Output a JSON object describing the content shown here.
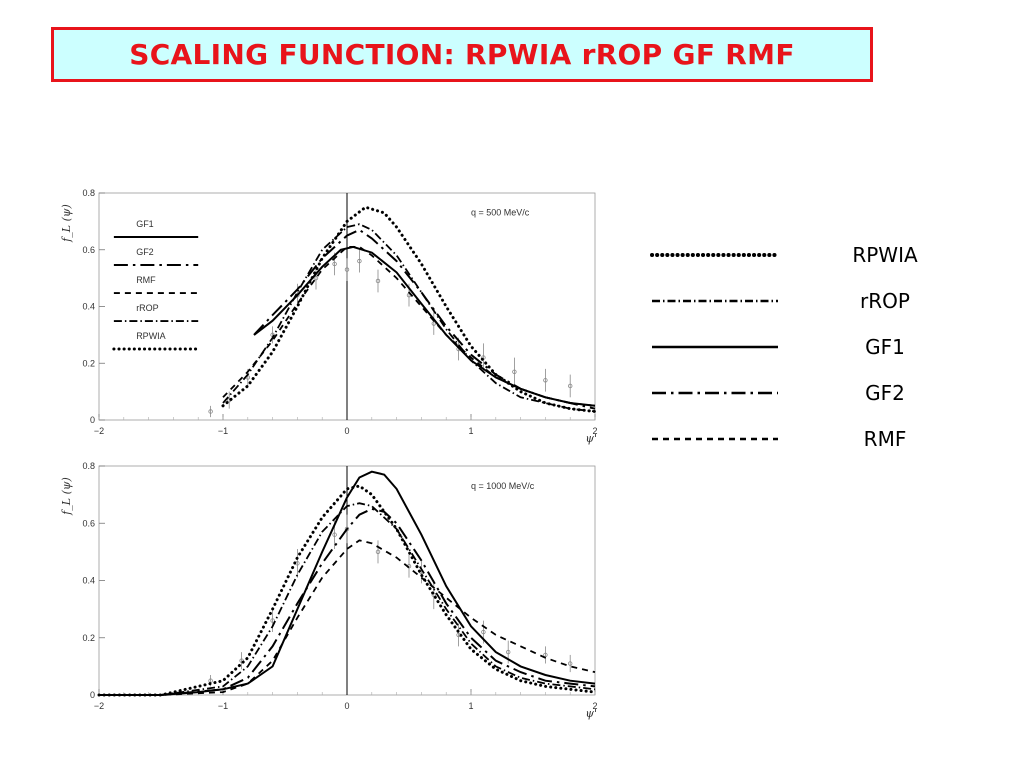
{
  "title": "SCALING FUNCTION: RPWIA rROP GF RMF",
  "colors": {
    "title_text": "#e8141b",
    "title_border": "#e8141b",
    "title_bg": "#ccffff",
    "lines": "#000000",
    "data_points": "#888888"
  },
  "legend_side": [
    {
      "label": "RPWIA",
      "style": "dotted"
    },
    {
      "label": "rROP",
      "style": "dashdot"
    },
    {
      "label": "GF1",
      "style": "solid"
    },
    {
      "label": "GF2",
      "style": "longdashdot"
    },
    {
      "label": "RMF",
      "style": "dashed"
    }
  ],
  "chart_data": [
    {
      "type": "line",
      "annotation": "q = 500 MeV/c",
      "ylabel": "f_L (ψ)",
      "xlabel": "ψ'",
      "xlim": [
        -2,
        2
      ],
      "ylim": [
        0,
        0.8
      ],
      "xticks": [
        "−2",
        "−1",
        "0",
        "1",
        "2"
      ],
      "yticks": [
        "0",
        "0.2",
        "0.4",
        "0.6",
        "0.8"
      ],
      "vertical_line_x": 0,
      "legend": [
        {
          "name": "GF1",
          "style": "solid"
        },
        {
          "name": "GF2",
          "style": "longdashdot"
        },
        {
          "name": "RMF",
          "style": "dashed"
        },
        {
          "name": "rROP",
          "style": "dashdot"
        },
        {
          "name": "RPWIA",
          "style": "dotted"
        }
      ],
      "series": [
        {
          "name": "GF1",
          "style": "solid",
          "x": [
            -0.75,
            -0.6,
            -0.4,
            -0.2,
            -0.05,
            0.05,
            0.2,
            0.4,
            0.6,
            0.8,
            1.0,
            1.2,
            1.4,
            1.6,
            1.8,
            2.0
          ],
          "y": [
            0.3,
            0.35,
            0.44,
            0.54,
            0.6,
            0.61,
            0.59,
            0.52,
            0.41,
            0.3,
            0.21,
            0.15,
            0.11,
            0.08,
            0.06,
            0.05
          ]
        },
        {
          "name": "GF2",
          "style": "longdashdot",
          "x": [
            -0.75,
            -0.6,
            -0.4,
            -0.2,
            0.0,
            0.1,
            0.2,
            0.4,
            0.6,
            0.8,
            1.0,
            1.2,
            1.4,
            1.6,
            1.8,
            2.0
          ],
          "y": [
            0.3,
            0.37,
            0.46,
            0.57,
            0.65,
            0.67,
            0.64,
            0.56,
            0.45,
            0.33,
            0.23,
            0.16,
            0.11,
            0.08,
            0.06,
            0.04
          ]
        },
        {
          "name": "RMF",
          "style": "dashed",
          "x": [
            -1.0,
            -0.8,
            -0.6,
            -0.4,
            -0.2,
            0.0,
            0.1,
            0.2,
            0.4,
            0.6,
            0.8,
            1.0,
            1.2,
            1.4,
            1.6,
            1.8,
            2.0
          ],
          "y": [
            0.08,
            0.17,
            0.28,
            0.41,
            0.53,
            0.61,
            0.61,
            0.58,
            0.5,
            0.4,
            0.3,
            0.22,
            0.15,
            0.11,
            0.08,
            0.06,
            0.05
          ]
        },
        {
          "name": "rROP",
          "style": "dashdot",
          "x": [
            -1.0,
            -0.8,
            -0.6,
            -0.4,
            -0.2,
            0.0,
            0.1,
            0.2,
            0.4,
            0.6,
            0.8,
            1.0,
            1.2,
            1.4,
            1.6,
            1.8,
            2.0
          ],
          "y": [
            0.06,
            0.16,
            0.29,
            0.45,
            0.6,
            0.68,
            0.69,
            0.67,
            0.58,
            0.45,
            0.32,
            0.21,
            0.13,
            0.08,
            0.06,
            0.04,
            0.03
          ]
        },
        {
          "name": "RPWIA",
          "style": "dotted",
          "x": [
            -1.0,
            -0.8,
            -0.6,
            -0.4,
            -0.2,
            0.0,
            0.15,
            0.3,
            0.4,
            0.6,
            0.8,
            1.0,
            1.2,
            1.4,
            1.6,
            1.8,
            2.0
          ],
          "y": [
            0.05,
            0.12,
            0.24,
            0.4,
            0.57,
            0.7,
            0.75,
            0.73,
            0.68,
            0.55,
            0.4,
            0.26,
            0.16,
            0.1,
            0.06,
            0.04,
            0.03
          ]
        }
      ],
      "data_points": {
        "x": [
          -1.1,
          -0.95,
          -0.8,
          -0.6,
          -0.4,
          -0.25,
          -0.1,
          0.0,
          0.1,
          0.25,
          0.5,
          0.7,
          0.9,
          1.1,
          1.35,
          1.6,
          1.8
        ],
        "y": [
          0.03,
          0.07,
          0.15,
          0.3,
          0.44,
          0.5,
          0.55,
          0.53,
          0.56,
          0.49,
          0.44,
          0.34,
          0.25,
          0.22,
          0.17,
          0.14,
          0.12
        ],
        "err": [
          0.02,
          0.03,
          0.03,
          0.03,
          0.04,
          0.04,
          0.04,
          0.04,
          0.04,
          0.04,
          0.04,
          0.04,
          0.04,
          0.05,
          0.05,
          0.04,
          0.04
        ]
      }
    },
    {
      "type": "line",
      "annotation": "q = 1000 MeV/c",
      "ylabel": "f_L (ψ)",
      "xlabel": "ψ'",
      "xlim": [
        -2,
        2
      ],
      "ylim": [
        0,
        0.8
      ],
      "xticks": [
        "−2",
        "−1",
        "0",
        "1",
        "2"
      ],
      "yticks": [
        "0",
        "0.2",
        "0.4",
        "0.6",
        "0.8"
      ],
      "vertical_line_x": 0,
      "series": [
        {
          "name": "GF1",
          "style": "solid",
          "x": [
            -2.0,
            -1.5,
            -1.2,
            -1.0,
            -0.8,
            -0.6,
            -0.4,
            -0.2,
            0.0,
            0.1,
            0.2,
            0.3,
            0.4,
            0.6,
            0.8,
            1.0,
            1.2,
            1.4,
            1.6,
            1.8,
            2.0
          ],
          "y": [
            0.0,
            0.0,
            0.01,
            0.02,
            0.04,
            0.1,
            0.3,
            0.5,
            0.69,
            0.76,
            0.78,
            0.77,
            0.72,
            0.56,
            0.38,
            0.24,
            0.15,
            0.1,
            0.07,
            0.05,
            0.04
          ]
        },
        {
          "name": "GF2",
          "style": "longdashdot",
          "x": [
            -2.0,
            -1.5,
            -1.0,
            -0.8,
            -0.6,
            -0.4,
            -0.2,
            0.0,
            0.1,
            0.2,
            0.3,
            0.4,
            0.6,
            0.8,
            1.0,
            1.2,
            1.4,
            1.6,
            1.8,
            2.0
          ],
          "y": [
            0.0,
            0.0,
            0.02,
            0.06,
            0.17,
            0.32,
            0.46,
            0.58,
            0.63,
            0.65,
            0.64,
            0.6,
            0.47,
            0.32,
            0.2,
            0.12,
            0.08,
            0.05,
            0.04,
            0.03
          ]
        },
        {
          "name": "RMF",
          "style": "dashed",
          "x": [
            -2.0,
            -1.5,
            -1.0,
            -0.8,
            -0.6,
            -0.4,
            -0.2,
            0.0,
            0.1,
            0.2,
            0.4,
            0.6,
            0.8,
            1.0,
            1.2,
            1.4,
            1.6,
            1.8,
            2.0
          ],
          "y": [
            0.0,
            0.0,
            0.01,
            0.04,
            0.12,
            0.27,
            0.41,
            0.51,
            0.54,
            0.53,
            0.48,
            0.41,
            0.34,
            0.27,
            0.21,
            0.17,
            0.13,
            0.1,
            0.08
          ]
        },
        {
          "name": "rROP",
          "style": "dashdot",
          "x": [
            -2.0,
            -1.5,
            -1.0,
            -0.8,
            -0.6,
            -0.4,
            -0.2,
            0.0,
            0.1,
            0.2,
            0.4,
            0.6,
            0.8,
            1.0,
            1.2,
            1.4,
            1.6,
            1.8,
            2.0
          ],
          "y": [
            0.0,
            0.0,
            0.03,
            0.1,
            0.24,
            0.42,
            0.57,
            0.66,
            0.67,
            0.66,
            0.58,
            0.44,
            0.3,
            0.18,
            0.1,
            0.06,
            0.04,
            0.03,
            0.02
          ]
        },
        {
          "name": "RPWIA",
          "style": "dotted",
          "x": [
            -2.0,
            -1.5,
            -1.0,
            -0.8,
            -0.6,
            -0.4,
            -0.2,
            0.0,
            0.1,
            0.2,
            0.4,
            0.6,
            0.8,
            1.0,
            1.2,
            1.4,
            1.6,
            1.8,
            2.0
          ],
          "y": [
            0.0,
            0.0,
            0.05,
            0.13,
            0.3,
            0.48,
            0.62,
            0.72,
            0.73,
            0.7,
            0.58,
            0.42,
            0.28,
            0.16,
            0.09,
            0.05,
            0.03,
            0.02,
            0.01
          ]
        }
      ],
      "data_points": {
        "x": [
          -1.1,
          -0.85,
          -0.6,
          -0.4,
          -0.1,
          0.0,
          0.25,
          0.5,
          0.6,
          0.7,
          0.9,
          1.1,
          1.3,
          1.6,
          1.8
        ],
        "y": [
          0.05,
          0.12,
          0.26,
          0.46,
          0.56,
          0.58,
          0.5,
          0.45,
          0.43,
          0.35,
          0.21,
          0.22,
          0.15,
          0.14,
          0.11
        ],
        "err": [
          0.02,
          0.03,
          0.04,
          0.05,
          0.05,
          0.05,
          0.04,
          0.04,
          0.04,
          0.05,
          0.04,
          0.04,
          0.04,
          0.03,
          0.03
        ]
      }
    }
  ]
}
